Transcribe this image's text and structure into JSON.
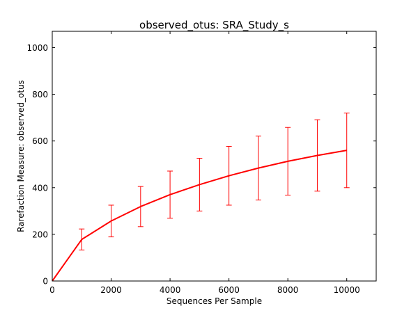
{
  "chart_data": {
    "type": "line",
    "title": "observed_otus: SRA_Study_s",
    "xlabel": "Sequences Per Sample",
    "ylabel": "Rarefaction Measure: observed_otus",
    "xlim": [
      0,
      11000
    ],
    "ylim": [
      0,
      1070
    ],
    "xticks": [
      0,
      2000,
      4000,
      6000,
      8000,
      10000
    ],
    "yticks": [
      0,
      200,
      400,
      600,
      800,
      1000
    ],
    "grid": false,
    "line_color": "#ff0000",
    "series": [
      {
        "x": [
          0,
          1000,
          2000,
          3000,
          4000,
          5000,
          6000,
          7000,
          8000,
          9000,
          10000
        ],
        "y": [
          0,
          178,
          257,
          319,
          370,
          413,
          451,
          484,
          513,
          538,
          560
        ],
        "yerr": [
          0,
          45,
          68,
          86,
          101,
          113,
          126,
          137,
          145,
          153,
          160
        ]
      }
    ]
  }
}
